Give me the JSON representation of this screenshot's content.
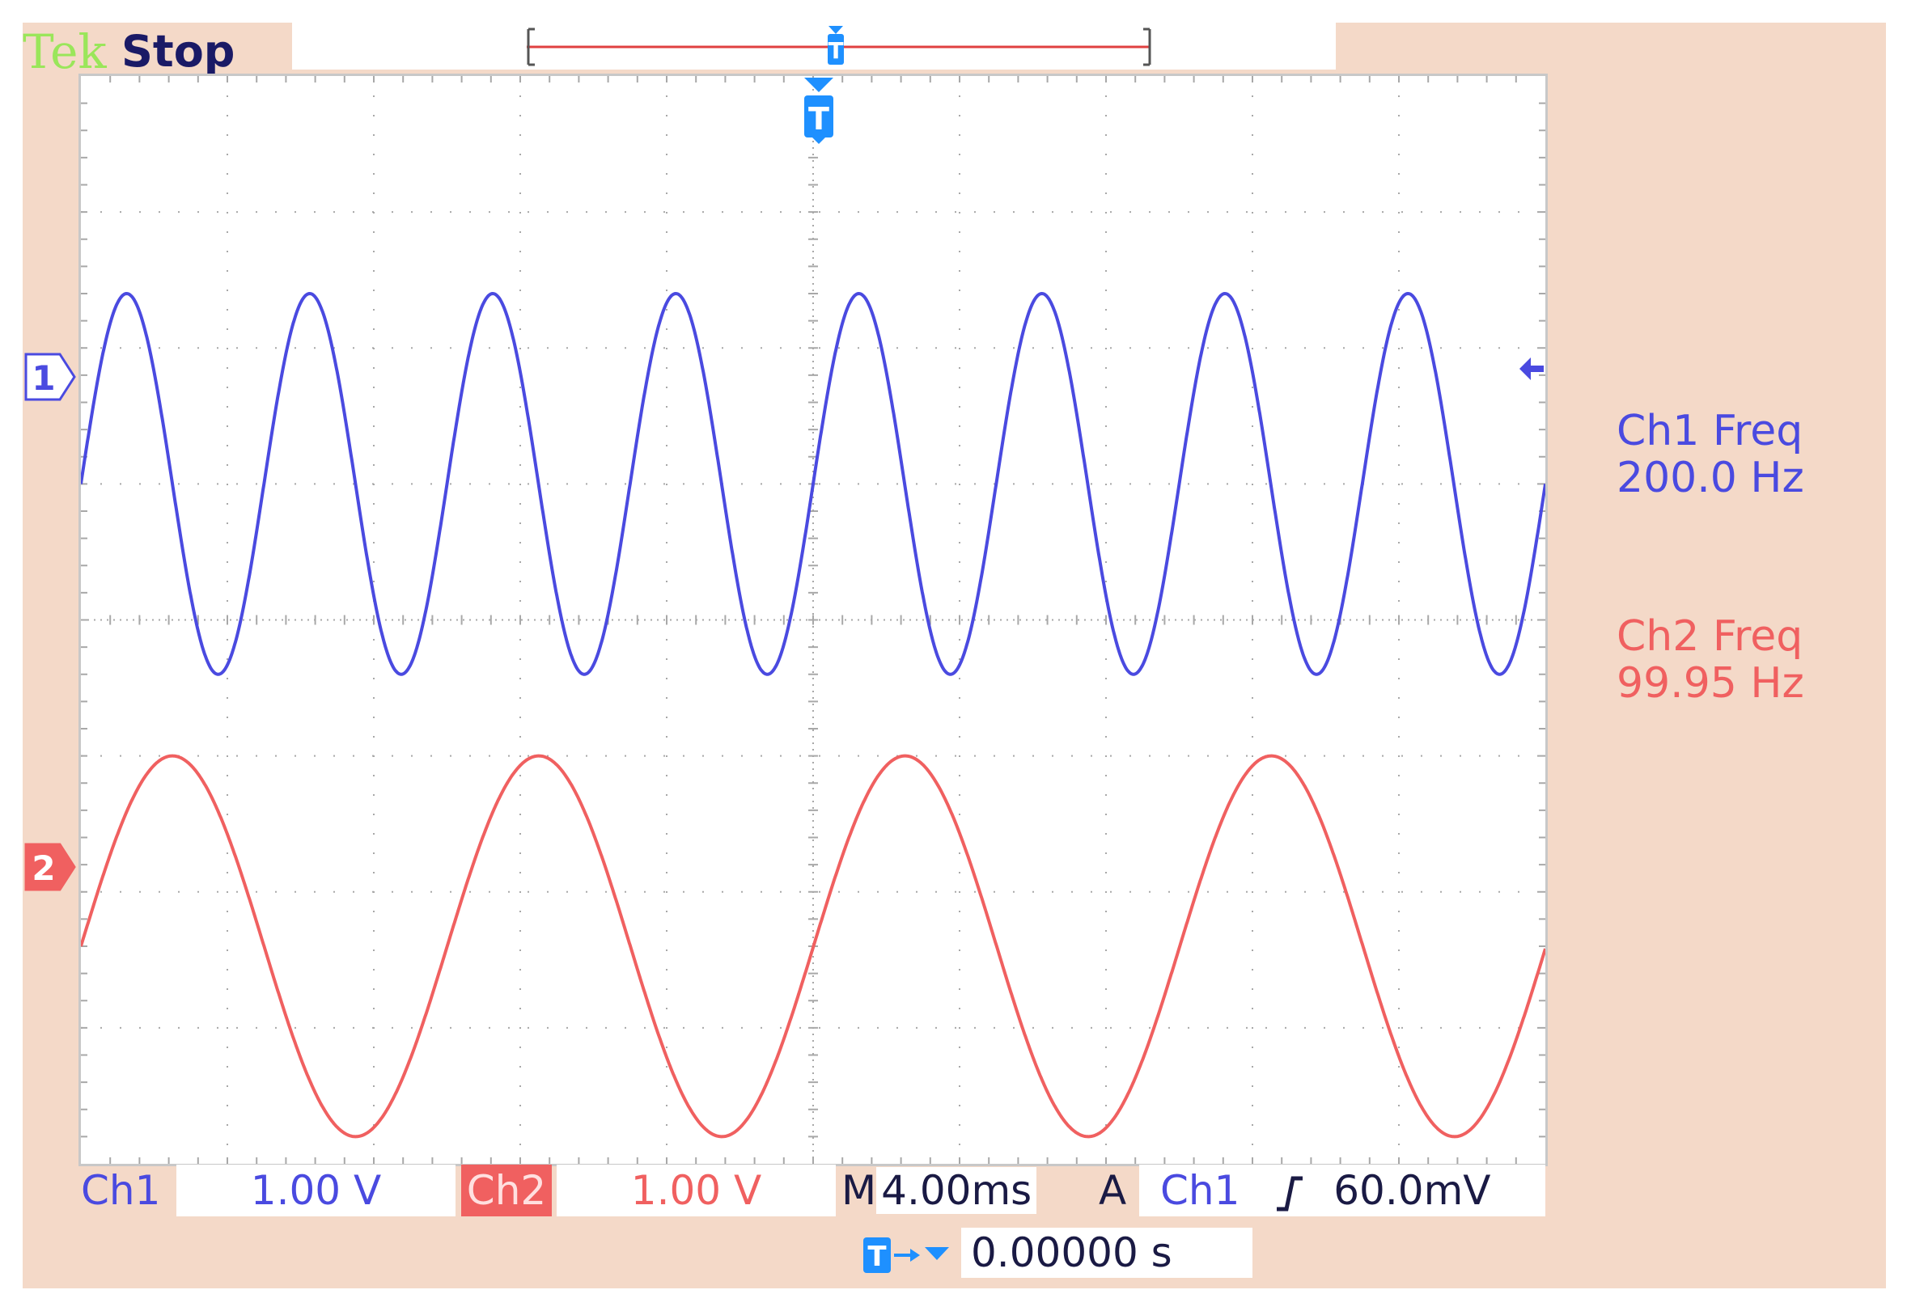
{
  "header": {
    "brand": "Tek",
    "run_state": "Stop"
  },
  "channels": [
    {
      "id": "1",
      "name": "Ch1",
      "color": "#4a4ae0",
      "scale": "1.00 V",
      "freq_label": "Ch1 Freq",
      "freq_value": "200.0 Hz"
    },
    {
      "id": "2",
      "name": "Ch2",
      "color": "#f06060",
      "scale": "1.00 V",
      "freq_label": "Ch2 Freq",
      "freq_value": "99.95 Hz"
    }
  ],
  "timebase": {
    "prefix": "M",
    "value": "4.00ms"
  },
  "trigger": {
    "mode": "A",
    "source": "Ch1",
    "slope_icon": "rising-edge-icon",
    "level": "60.0mV"
  },
  "position": {
    "value": "0.00000 s",
    "icon": "trigger-position-icon"
  },
  "chart_data": {
    "type": "line",
    "x_divisions": 10,
    "y_divisions": 8,
    "series": [
      {
        "name": "Ch1",
        "color": "#4a4ae0",
        "frequency_hz": 200.0,
        "amplitude_div": 1.4,
        "offset_div": 1.0,
        "phase_deg": 0
      },
      {
        "name": "Ch2",
        "color": "#f06060",
        "frequency_hz": 99.95,
        "amplitude_div": 1.4,
        "offset_div": -2.4,
        "phase_deg": 0
      }
    ],
    "time_per_div_ms": 4.0,
    "grid": true
  }
}
